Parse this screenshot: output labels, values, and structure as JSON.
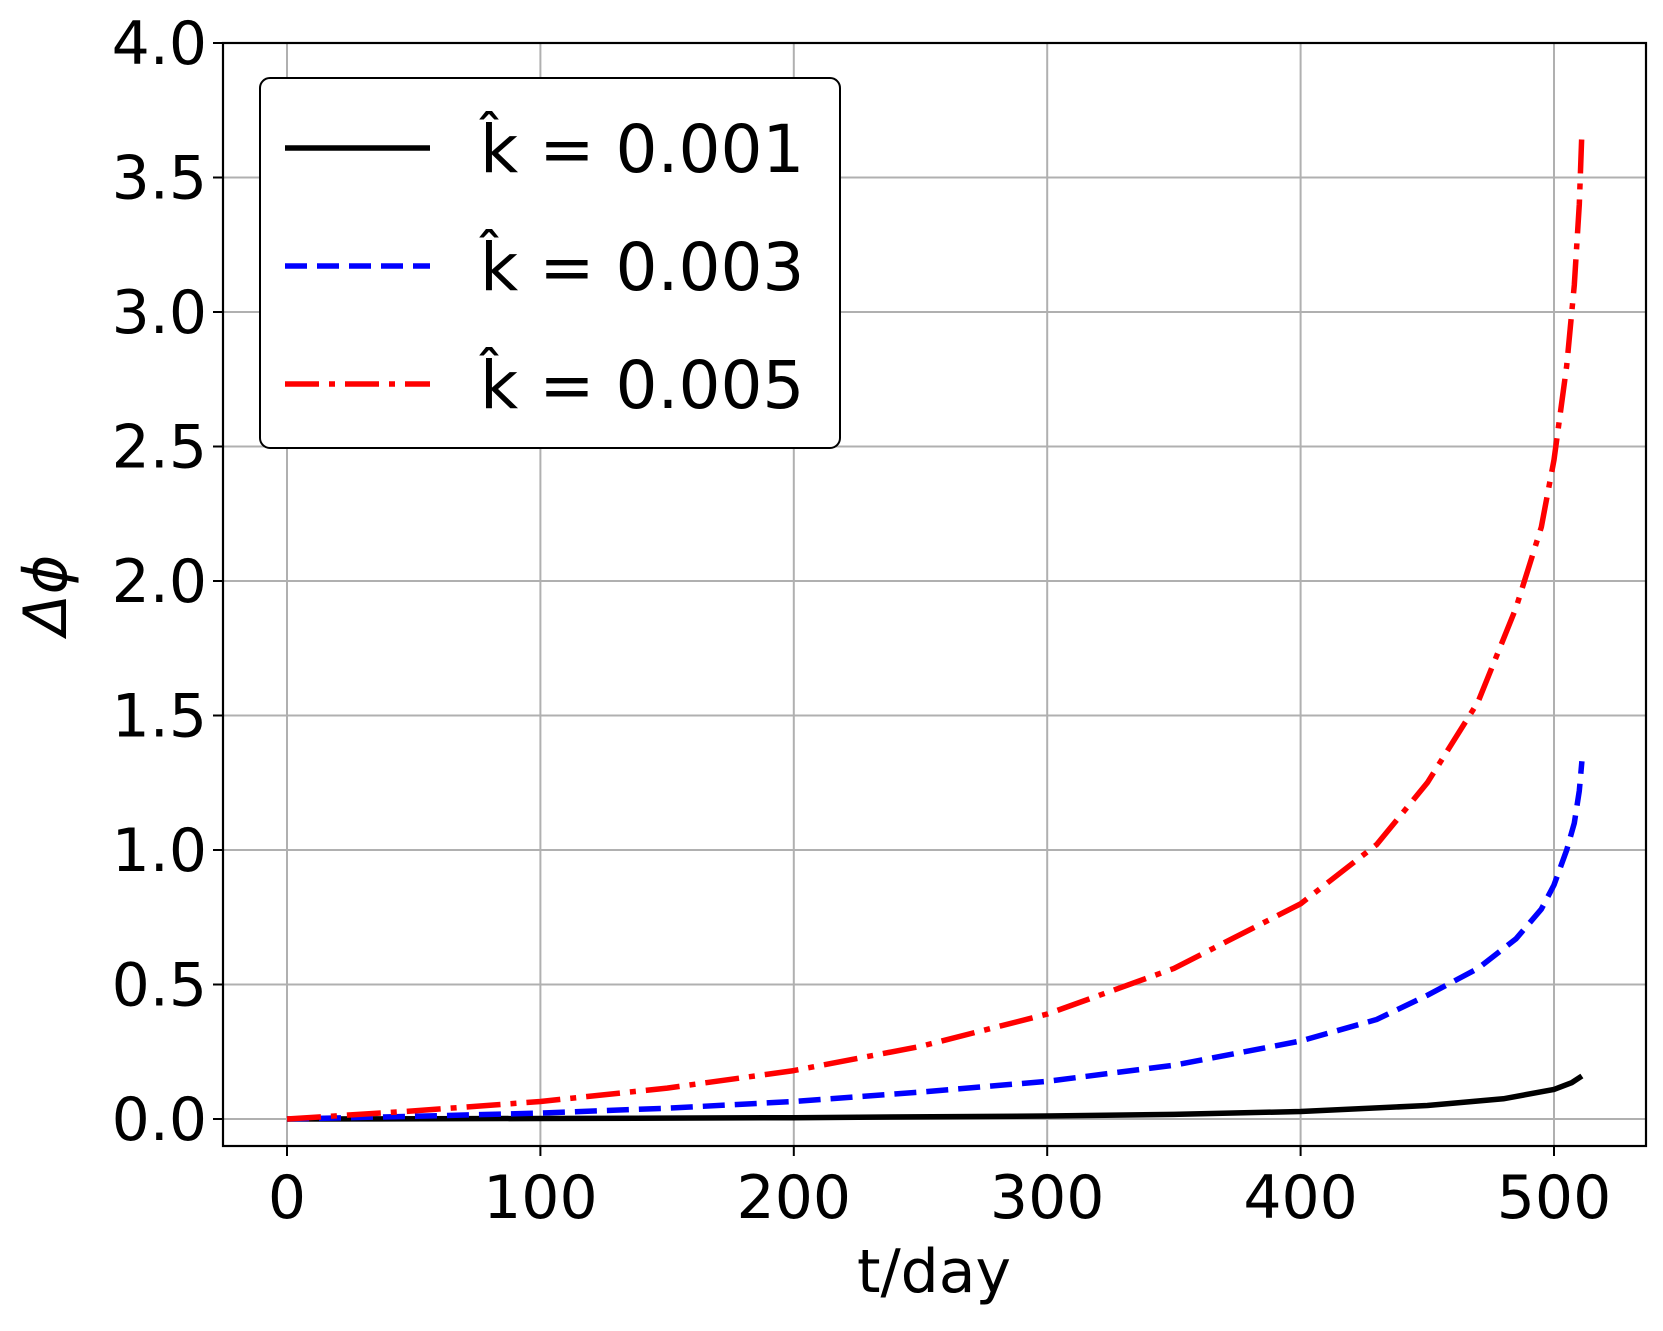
{
  "chart_data": {
    "type": "line",
    "title": "",
    "xlabel": "t/day",
    "ylabel": "Δϕ",
    "xlim": [
      -25,
      537
    ],
    "ylim": [
      -0.1,
      4.0
    ],
    "xticks": [
      0,
      100,
      200,
      300,
      400,
      500
    ],
    "xtick_labels": [
      "0",
      "100",
      "200",
      "300",
      "400",
      "500"
    ],
    "yticks": [
      0.0,
      0.5,
      1.0,
      1.5,
      2.0,
      2.5,
      3.0,
      3.5,
      4.0
    ],
    "ytick_labels": [
      "0.0",
      "0.5",
      "1.0",
      "1.5",
      "2.0",
      "2.5",
      "3.0",
      "3.5",
      "4.0"
    ],
    "grid": true,
    "legend_position": "top-left",
    "series": [
      {
        "name": "k̂ = 0.001",
        "color": "#000000",
        "style": "solid",
        "x": [
          0,
          100,
          200,
          300,
          350,
          400,
          450,
          480,
          500,
          507,
          511
        ],
        "y": [
          0,
          0.002,
          0.005,
          0.011,
          0.017,
          0.028,
          0.05,
          0.075,
          0.11,
          0.135,
          0.16
        ]
      },
      {
        "name": "k̂ = 0.003",
        "color": "#0000ff",
        "style": "dashed",
        "x": [
          0,
          50,
          100,
          150,
          200,
          250,
          300,
          350,
          400,
          430,
          450,
          470,
          485,
          495,
          500,
          505,
          508,
          510,
          511
        ],
        "y": [
          0,
          0.01,
          0.022,
          0.04,
          0.065,
          0.1,
          0.14,
          0.2,
          0.29,
          0.37,
          0.46,
          0.56,
          0.67,
          0.78,
          0.87,
          1.0,
          1.1,
          1.22,
          1.33
        ]
      },
      {
        "name": "k̂ = 0.005",
        "color": "#ff0000",
        "style": "dashdot",
        "x": [
          0,
          50,
          100,
          150,
          200,
          250,
          300,
          350,
          400,
          430,
          450,
          470,
          485,
          495,
          500,
          505,
          508,
          510,
          511
        ],
        "y": [
          0,
          0.03,
          0.065,
          0.115,
          0.18,
          0.27,
          0.39,
          0.56,
          0.8,
          1.02,
          1.25,
          1.55,
          1.9,
          2.2,
          2.45,
          2.8,
          3.1,
          3.4,
          3.67
        ]
      }
    ]
  }
}
